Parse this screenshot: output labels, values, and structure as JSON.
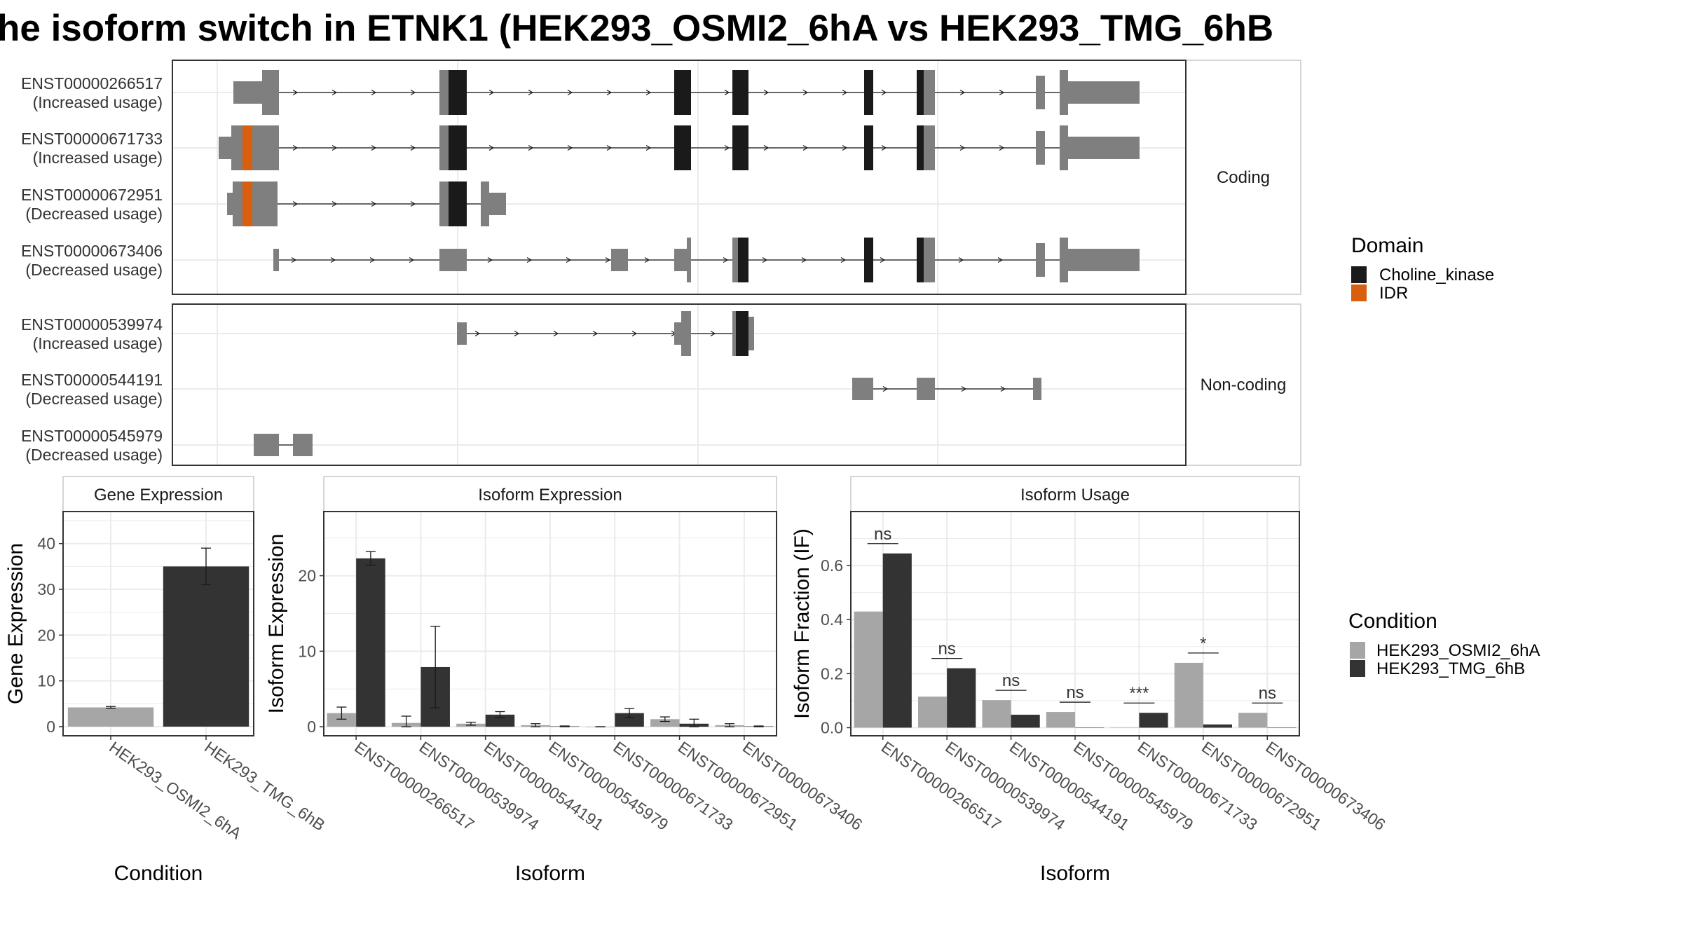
{
  "title": "he isoform switch in ETNK1 (HEK293_OSMI2_6hA vs HEK293_TMG_6hB",
  "colors": {
    "exon": "#7f7f7f",
    "choline_kinase": "#1a1a1a",
    "idr": "#d95f0e",
    "cond_a": "#a6a6a6",
    "cond_b": "#333333",
    "grid": "#ebebeb",
    "panel_border": "#333333",
    "strip_border": "#c8c8c8"
  },
  "structure": {
    "coding_label": "Coding",
    "noncoding_label": "Non-coding",
    "legend": {
      "title": "Domain",
      "items": [
        {
          "label": "Choline_kinase",
          "color": "#1a1a1a"
        },
        {
          "label": "IDR",
          "color": "#d95f0e"
        }
      ]
    },
    "transcripts": [
      {
        "id": "ENST00000266517",
        "usage": "(Increased usage)",
        "group": "coding"
      },
      {
        "id": "ENST00000671733",
        "usage": "(Increased usage)",
        "group": "coding"
      },
      {
        "id": "ENST00000672951",
        "usage": "(Decreased usage)",
        "group": "coding"
      },
      {
        "id": "ENST00000673406",
        "usage": "(Decreased usage)",
        "group": "coding"
      },
      {
        "id": "ENST00000539974",
        "usage": "(Increased usage)",
        "group": "noncoding"
      },
      {
        "id": "ENST00000544191",
        "usage": "(Decreased usage)",
        "group": "noncoding"
      },
      {
        "id": "ENST00000545979",
        "usage": "(Decreased usage)",
        "group": "noncoding"
      }
    ]
  },
  "condition_legend": {
    "title": "Condition",
    "items": [
      {
        "label": "HEK293_OSMI2_6hA",
        "color": "#a6a6a6"
      },
      {
        "label": "HEK293_TMG_6hB",
        "color": "#333333"
      }
    ]
  },
  "chart_data": [
    {
      "type": "bar",
      "title": "Gene Expression",
      "xlabel": "Condition",
      "ylabel": "Gene Expression",
      "categories": [
        "HEK293_OSMI2_6hA",
        "HEK293_TMG_6hB"
      ],
      "values": [
        4.2,
        35.0
      ],
      "error_low": [
        4.0,
        31.0
      ],
      "error_high": [
        4.4,
        39.0
      ],
      "ylim": [
        -2,
        47
      ],
      "yticks": [
        0,
        10,
        20,
        30,
        40
      ],
      "grid": true
    },
    {
      "type": "bar",
      "title": "Isoform Expression",
      "xlabel": "Isoform",
      "ylabel": "Isoform Expression",
      "categories": [
        "ENST00000266517",
        "ENST00000539974",
        "ENST00000544191",
        "ENST00000545979",
        "ENST00000671733",
        "ENST00000672951",
        "ENST00000673406"
      ],
      "series": [
        {
          "name": "HEK293_OSMI2_6hA",
          "values": [
            1.8,
            0.5,
            0.4,
            0.2,
            0.0,
            1.0,
            0.2
          ],
          "error_low": [
            1.0,
            0.0,
            0.2,
            0.0,
            0.0,
            0.7,
            0.0
          ],
          "error_high": [
            2.6,
            1.4,
            0.6,
            0.4,
            0.0,
            1.3,
            0.4
          ]
        },
        {
          "name": "HEK293_TMG_6hB",
          "values": [
            22.3,
            7.9,
            1.6,
            0.05,
            1.8,
            0.4,
            0.05
          ],
          "error_low": [
            21.4,
            2.5,
            1.2,
            0.0,
            1.2,
            0.0,
            0.0
          ],
          "error_high": [
            23.2,
            13.3,
            2.0,
            0.1,
            2.4,
            1.0,
            0.1
          ]
        }
      ],
      "ylim": [
        -1.2,
        28.5
      ],
      "yticks": [
        0,
        10,
        20
      ],
      "grid": true
    },
    {
      "type": "bar",
      "title": "Isoform Usage",
      "xlabel": "Isoform",
      "ylabel": "Isoform Fraction (IF)",
      "categories": [
        "ENST00000266517",
        "ENST00000539974",
        "ENST00000544191",
        "ENST00000545979",
        "ENST00000671733",
        "ENST00000672951",
        "ENST00000673406"
      ],
      "series": [
        {
          "name": "HEK293_OSMI2_6hA",
          "values": [
            0.43,
            0.115,
            0.102,
            0.058,
            0.0,
            0.24,
            0.055
          ]
        },
        {
          "name": "HEK293_TMG_6hB",
          "values": [
            0.645,
            0.22,
            0.048,
            0.0,
            0.055,
            0.012,
            0.0
          ]
        }
      ],
      "significance": [
        "ns",
        "ns",
        "ns",
        "ns",
        "***",
        "*",
        "ns"
      ],
      "ylim": [
        -0.03,
        0.8
      ],
      "yticks": [
        "0.0",
        "0.2",
        "0.4",
        "0.6"
      ],
      "grid": true
    }
  ]
}
